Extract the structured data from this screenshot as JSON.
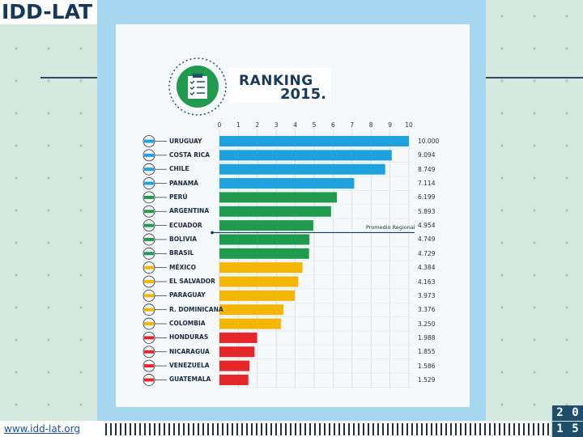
{
  "brand": "IDD-LAT",
  "footer": {
    "url": "www.idd-lat.org"
  },
  "year_digits": [
    "2",
    "0",
    "1",
    "5"
  ],
  "title": {
    "line1": "RANKING",
    "line2": "2015."
  },
  "colors": {
    "blue": "#1ea1dc",
    "green": "#1f9a4e",
    "yellow": "#f4b600",
    "red": "#e5262b",
    "panel": "#a7d6f0",
    "background": "#d4e8df"
  },
  "chart_data": {
    "type": "bar",
    "orientation": "horizontal",
    "title": "RANKING 2015.",
    "x_ticks": [
      "0",
      "1",
      "2",
      "3",
      "4",
      "5",
      "6",
      "7",
      "8",
      "9",
      "10"
    ],
    "xlim": [
      0,
      10
    ],
    "grid": true,
    "categories": [
      "URUGUAY",
      "COSTA RICA",
      "CHILE",
      "PANAMÁ",
      "PERÚ",
      "ARGENTINA",
      "ECUADOR",
      "BOLIVIA",
      "BRASIL",
      "MÉXICO",
      "EL SALVADOR",
      "PARAGUAY",
      "R. DOMINICANA",
      "COLOMBIA",
      "HONDURAS",
      "NICARAGUA",
      "VENEZUELA",
      "GUATEMALA"
    ],
    "values": [
      10.0,
      9.094,
      8.749,
      7.114,
      6.199,
      5.893,
      4.954,
      4.749,
      4.729,
      4.384,
      4.163,
      3.973,
      3.376,
      3.25,
      1.988,
      1.855,
      1.586,
      1.529
    ],
    "value_labels": [
      "10.000",
      "9.094",
      "8.749",
      "7.114",
      "6.199",
      "5.893",
      "4.954",
      "4.749",
      "4.729",
      "4.384",
      "4.163",
      "3.973",
      "3.376",
      "3.250",
      "1.988",
      "1.855",
      "1.586",
      "1.529"
    ],
    "bar_groups": [
      "blue",
      "blue",
      "blue",
      "blue",
      "green",
      "green",
      "green",
      "green",
      "green",
      "yellow",
      "yellow",
      "yellow",
      "yellow",
      "yellow",
      "red",
      "red",
      "red",
      "red"
    ],
    "reference_line": {
      "label": "Promedio Regional",
      "value": 4.954
    }
  }
}
